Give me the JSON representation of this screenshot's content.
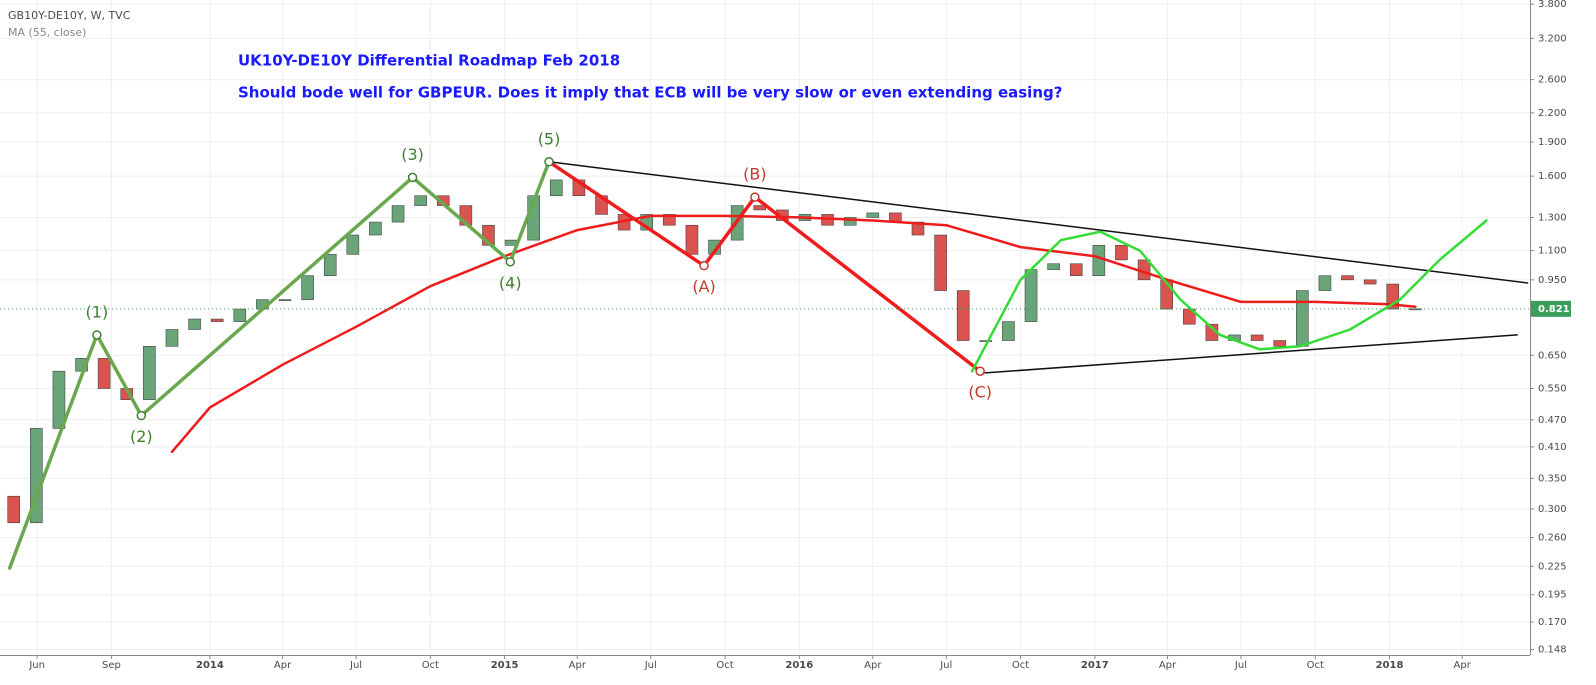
{
  "chart_data": {
    "type": "candlestick",
    "symbol": "GB10Y-DE10Y, W, TVC",
    "title": "UK10Y-DE10Y Differential Roadmap Feb 2018",
    "subtitle": "Should bode well for GBPEUR. Does it imply that ECB will be very slow or even extending easing?",
    "log_scale": true,
    "grid": true,
    "up_color": "#6aa57a",
    "down_color": "#d9534f",
    "x": [
      "2013-05-03",
      "2013-05-31",
      "2013-06-28",
      "2013-07-26",
      "2013-08-23",
      "2013-09-20",
      "2013-10-18",
      "2013-11-15",
      "2013-12-13",
      "2014-01-10",
      "2014-02-07",
      "2014-03-07",
      "2014-04-04",
      "2014-05-02",
      "2014-05-30",
      "2014-06-27",
      "2014-07-25",
      "2014-08-22",
      "2014-09-19",
      "2014-10-17",
      "2014-11-14",
      "2014-12-12",
      "2015-01-09",
      "2015-02-06",
      "2015-03-06",
      "2015-04-03",
      "2015-05-01",
      "2015-05-29",
      "2015-06-26",
      "2015-07-24",
      "2015-08-21",
      "2015-09-18",
      "2015-10-16",
      "2015-11-13",
      "2015-12-11",
      "2016-01-08",
      "2016-02-05",
      "2016-03-04",
      "2016-04-01",
      "2016-04-29",
      "2016-05-27",
      "2016-06-24",
      "2016-07-22",
      "2016-08-19",
      "2016-09-16",
      "2016-10-14",
      "2016-11-11",
      "2016-12-09",
      "2017-01-06",
      "2017-02-03",
      "2017-03-03",
      "2017-03-31",
      "2017-04-28",
      "2017-05-26",
      "2017-06-23",
      "2017-07-21",
      "2017-08-18",
      "2017-09-15",
      "2017-10-13",
      "2017-11-10",
      "2017-12-08",
      "2018-01-05",
      "2018-02-02"
    ],
    "open": [
      0.32,
      0.28,
      0.45,
      0.6,
      0.64,
      0.55,
      0.52,
      0.68,
      0.74,
      0.78,
      0.77,
      0.82,
      0.86,
      0.86,
      0.97,
      1.08,
      1.19,
      1.27,
      1.38,
      1.45,
      1.38,
      1.25,
      1.13,
      1.16,
      1.45,
      1.57,
      1.45,
      1.32,
      1.22,
      1.32,
      1.25,
      1.08,
      1.16,
      1.38,
      1.35,
      1.28,
      1.32,
      1.25,
      1.3,
      1.33,
      1.27,
      1.19,
      0.9,
      0.7,
      0.7,
      0.77,
      1.0,
      1.03,
      0.97,
      1.13,
      1.05,
      0.95,
      0.82,
      0.76,
      0.7,
      0.72,
      0.7,
      0.68,
      0.9,
      0.97,
      0.95,
      0.93,
      0.82
    ],
    "close": [
      0.28,
      0.45,
      0.6,
      0.64,
      0.55,
      0.52,
      0.68,
      0.74,
      0.78,
      0.77,
      0.82,
      0.86,
      0.86,
      0.97,
      1.08,
      1.19,
      1.27,
      1.38,
      1.45,
      1.38,
      1.25,
      1.13,
      1.16,
      1.45,
      1.57,
      1.45,
      1.32,
      1.22,
      1.32,
      1.25,
      1.08,
      1.16,
      1.38,
      1.35,
      1.28,
      1.32,
      1.25,
      1.3,
      1.33,
      1.27,
      1.19,
      0.9,
      0.7,
      0.7,
      0.77,
      1.0,
      1.03,
      0.97,
      1.13,
      1.05,
      0.95,
      0.82,
      0.76,
      0.7,
      0.72,
      0.7,
      0.68,
      0.9,
      0.97,
      0.95,
      0.93,
      0.82,
      0.821
    ],
    "ma": {
      "name": "MA (55, close)",
      "color": "#ee1c1c",
      "x": [
        "2013-11-15",
        "2014-01-01",
        "2014-04-01",
        "2014-07-01",
        "2014-10-01",
        "2015-01-01",
        "2015-04-01",
        "2015-07-01",
        "2015-10-01",
        "2016-01-01",
        "2016-04-01",
        "2016-07-01",
        "2016-10-01",
        "2017-01-01",
        "2017-04-01",
        "2017-07-01",
        "2017-10-01",
        "2018-01-01",
        "2018-02-02"
      ],
      "values": [
        0.4,
        0.5,
        0.62,
        0.75,
        0.92,
        1.07,
        1.22,
        1.31,
        1.31,
        1.3,
        1.28,
        1.25,
        1.12,
        1.07,
        0.95,
        0.85,
        0.85,
        0.84,
        0.83
      ]
    },
    "last_price": 0.821,
    "last_price_color": "#3c9c5c",
    "drawings": [
      {
        "color": "#6aa84f",
        "width": 3.5,
        "x": [
          "2013-04-28",
          "2013-08-14",
          "2013-10-08",
          "2014-09-09",
          "2015-01-08",
          "2015-02-25"
        ],
        "y": [
          0.223,
          0.72,
          0.48,
          1.59,
          1.04,
          1.72
        ]
      },
      {
        "color": "#ee1c1c",
        "width": 3.5,
        "x": [
          "2015-02-25",
          "2015-09-05",
          "2015-11-07",
          "2016-08-12"
        ],
        "y": [
          1.72,
          1.02,
          1.44,
          0.6
        ]
      },
      {
        "color": "#111111",
        "width": 1.5,
        "x": [
          "2015-02-25",
          "2018-06-21"
        ],
        "y": [
          1.72,
          0.935
        ]
      },
      {
        "color": "#111111",
        "width": 1.5,
        "x": [
          "2016-08-18",
          "2018-06-08"
        ],
        "y": [
          0.595,
          0.72
        ]
      },
      {
        "color": "#33dd33",
        "width": 2.5,
        "x": [
          "2016-08-02",
          "2016-10-01",
          "2016-11-20",
          "2017-01-08",
          "2017-02-26",
          "2017-04-17",
          "2017-06-05",
          "2017-07-24",
          "2017-09-12",
          "2017-11-13",
          "2018-01-14",
          "2018-03-04",
          "2018-05-01"
        ],
        "y": [
          0.6,
          0.95,
          1.16,
          1.21,
          1.1,
          0.86,
          0.72,
          0.67,
          0.68,
          0.74,
          0.86,
          1.05,
          1.28
        ]
      }
    ],
    "annotations": [
      {
        "label": "(1)",
        "x": "2013-08-14",
        "y": 0.72,
        "color": "#3f7f2f",
        "placement": "above"
      },
      {
        "label": "(2)",
        "x": "2013-10-08",
        "y": 0.48,
        "color": "#3f7f2f",
        "placement": "below"
      },
      {
        "label": "(3)",
        "x": "2014-09-09",
        "y": 1.59,
        "color": "#3f7f2f",
        "placement": "above"
      },
      {
        "label": "(4)",
        "x": "2015-01-08",
        "y": 1.04,
        "color": "#3f7f2f",
        "placement": "below"
      },
      {
        "label": "(5)",
        "x": "2015-02-25",
        "y": 1.72,
        "color": "#3f7f2f",
        "placement": "above"
      },
      {
        "label": "(A)",
        "x": "2015-09-05",
        "y": 1.02,
        "color": "#c0392b",
        "placement": "below"
      },
      {
        "label": "(B)",
        "x": "2015-11-07",
        "y": 1.44,
        "color": "#c0392b",
        "placement": "above"
      },
      {
        "label": "(C)",
        "x": "2016-08-12",
        "y": 0.6,
        "color": "#c0392b",
        "placement": "below"
      }
    ],
    "xlim": [
      "2013-04-16",
      "2018-06-24"
    ],
    "xticks": [
      {
        "value": "2013-06-01",
        "label": "Jun"
      },
      {
        "value": "2013-09-01",
        "label": "Sep"
      },
      {
        "value": "2014-01-01",
        "label": "2014"
      },
      {
        "value": "2014-04-01",
        "label": "Apr"
      },
      {
        "value": "2014-07-01",
        "label": "Jul"
      },
      {
        "value": "2014-10-01",
        "label": "Oct"
      },
      {
        "value": "2015-01-01",
        "label": "2015"
      },
      {
        "value": "2015-04-01",
        "label": "Apr"
      },
      {
        "value": "2015-07-01",
        "label": "Jul"
      },
      {
        "value": "2015-10-01",
        "label": "Oct"
      },
      {
        "value": "2016-01-01",
        "label": "2016"
      },
      {
        "value": "2016-04-01",
        "label": "Apr"
      },
      {
        "value": "2016-07-01",
        "label": "Jul"
      },
      {
        "value": "2016-10-01",
        "label": "Oct"
      },
      {
        "value": "2017-01-01",
        "label": "2017"
      },
      {
        "value": "2017-04-01",
        "label": "Apr"
      },
      {
        "value": "2017-07-01",
        "label": "Jul"
      },
      {
        "value": "2017-10-01",
        "label": "Oct"
      },
      {
        "value": "2018-01-01",
        "label": "2018"
      },
      {
        "value": "2018-04-01",
        "label": "Apr"
      }
    ],
    "ylim": [
      0.144,
      3.88
    ],
    "yticks": [
      {
        "value": 3.8,
        "label": "3.800"
      },
      {
        "value": 3.2,
        "label": "3.200"
      },
      {
        "value": 2.6,
        "label": "2.600"
      },
      {
        "value": 2.2,
        "label": "2.200"
      },
      {
        "value": 1.9,
        "label": "1.900"
      },
      {
        "value": 1.6,
        "label": "1.600"
      },
      {
        "value": 1.3,
        "label": "1.300"
      },
      {
        "value": 1.1,
        "label": "1.100"
      },
      {
        "value": 0.95,
        "label": "0.950"
      },
      {
        "value": 0.65,
        "label": "0.650"
      },
      {
        "value": 0.55,
        "label": "0.550"
      },
      {
        "value": 0.47,
        "label": "0.470"
      },
      {
        "value": 0.41,
        "label": "0.410"
      },
      {
        "value": 0.35,
        "label": "0.350"
      },
      {
        "value": 0.3,
        "label": "0.300"
      },
      {
        "value": 0.26,
        "label": "0.260"
      },
      0.225,
      0.195,
      {
        "value": 0.17,
        "label": "0.170"
      },
      0.148
    ]
  }
}
